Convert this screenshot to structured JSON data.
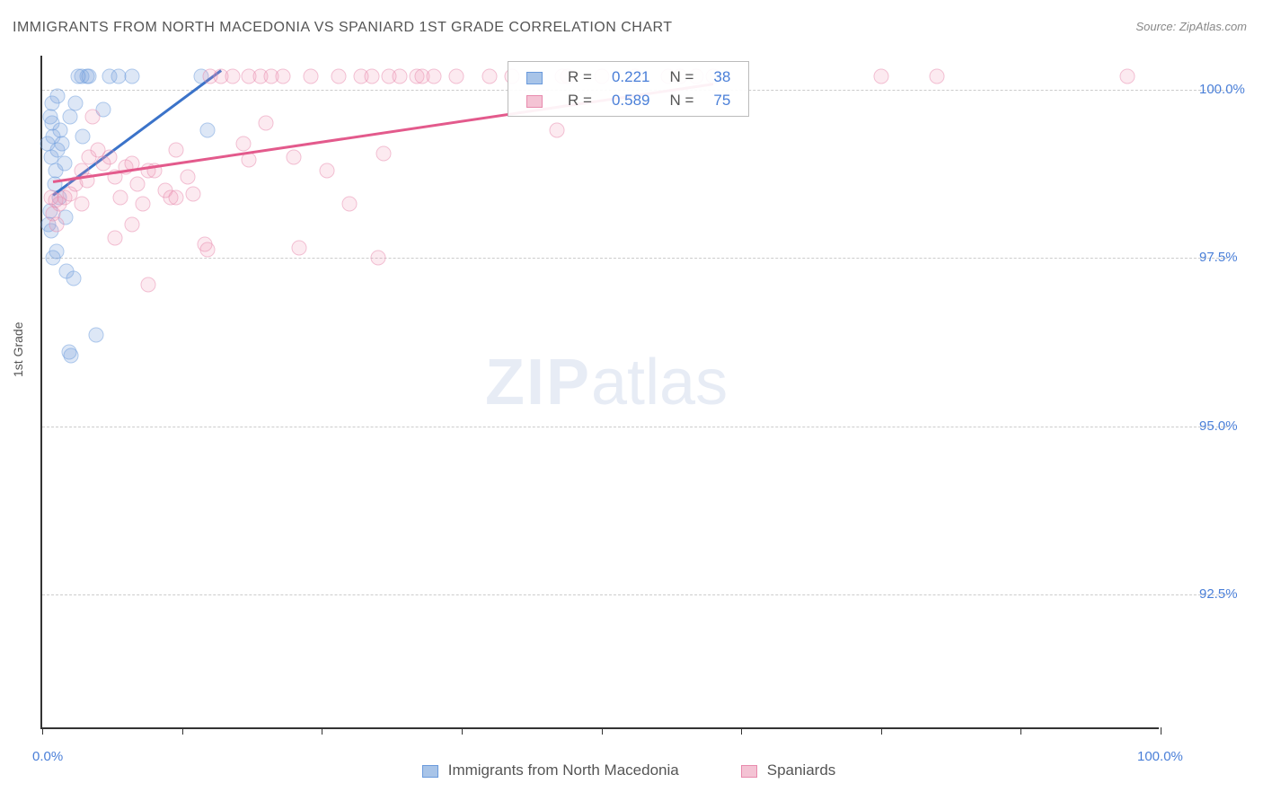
{
  "title": "IMMIGRANTS FROM NORTH MACEDONIA VS SPANIARD 1ST GRADE CORRELATION CHART",
  "source": "Source: ZipAtlas.com",
  "ylabel": "1st Grade",
  "watermark_a": "ZIP",
  "watermark_b": "atlas",
  "chart": {
    "type": "scatter",
    "background_color": "#ffffff",
    "grid_color": "#cccccc",
    "axis_color": "#333333",
    "xlim": [
      0,
      100
    ],
    "ylim": [
      90.5,
      100.5
    ],
    "xtick_positions": [
      0,
      12.5,
      25,
      37.5,
      50,
      62.5,
      75,
      87.5,
      100
    ],
    "xtick_labels": {
      "0": "0.0%",
      "100": "100.0%"
    },
    "ytick_positions": [
      92.5,
      95.0,
      97.5,
      100.0
    ],
    "ytick_labels": [
      "92.5%",
      "95.0%",
      "97.5%",
      "100.0%"
    ],
    "marker_size": 17,
    "series": [
      {
        "name": "Immigrants from North Macedonia",
        "color_fill": "rgba(120,160,220,0.45)",
        "color_stroke": "#6a9adc",
        "color_swatch": "#a8c4e8",
        "color_swatch_border": "#6a9adc",
        "color_trend": "#3b73c9",
        "R": "0.221",
        "N": "38",
        "trend": {
          "x1": 1,
          "y1": 98.45,
          "x2": 16,
          "y2": 100.3
        },
        "points": [
          [
            0.8,
            99.0
          ],
          [
            1.0,
            99.3
          ],
          [
            1.2,
            98.8
          ],
          [
            0.9,
            99.5
          ],
          [
            1.4,
            99.1
          ],
          [
            0.7,
            98.2
          ],
          [
            1.1,
            98.6
          ],
          [
            1.3,
            97.6
          ],
          [
            0.6,
            98.0
          ],
          [
            1.5,
            98.4
          ],
          [
            2.2,
            97.3
          ],
          [
            4.8,
            96.35
          ],
          [
            1.8,
            99.2
          ],
          [
            2.0,
            98.9
          ],
          [
            2.5,
            99.6
          ],
          [
            1.6,
            99.4
          ],
          [
            3.0,
            99.8
          ],
          [
            3.5,
            100.2
          ],
          [
            4.0,
            100.2
          ],
          [
            5.5,
            99.7
          ],
          [
            1.0,
            97.5
          ],
          [
            0.8,
            97.9
          ],
          [
            2.8,
            97.2
          ],
          [
            2.4,
            96.1
          ],
          [
            2.6,
            96.05
          ],
          [
            0.9,
            99.8
          ],
          [
            1.4,
            99.9
          ],
          [
            4.2,
            100.2
          ],
          [
            6.0,
            100.2
          ],
          [
            6.8,
            100.2
          ],
          [
            8.0,
            100.2
          ],
          [
            0.5,
            99.2
          ],
          [
            0.7,
            99.6
          ],
          [
            3.6,
            99.3
          ],
          [
            3.2,
            100.2
          ],
          [
            14.2,
            100.2
          ],
          [
            14.8,
            99.4
          ],
          [
            2.1,
            98.1
          ]
        ]
      },
      {
        "name": "Spaniards",
        "color_fill": "rgba(240,150,180,0.35)",
        "color_stroke": "#e88aad",
        "color_swatch": "#f4c3d4",
        "color_swatch_border": "#e88aad",
        "color_trend": "#e35a8c",
        "R": "0.589",
        "N": "75",
        "trend": {
          "x1": 1,
          "y1": 98.65,
          "x2": 60,
          "y2": 100.1
        },
        "points": [
          [
            1.5,
            98.3
          ],
          [
            2.0,
            98.4
          ],
          [
            2.5,
            98.45
          ],
          [
            0.8,
            98.4
          ],
          [
            1.2,
            98.35
          ],
          [
            3.0,
            98.6
          ],
          [
            3.5,
            98.8
          ],
          [
            4.0,
            98.65
          ],
          [
            4.5,
            99.6
          ],
          [
            4.2,
            99.0
          ],
          [
            5.0,
            99.1
          ],
          [
            5.5,
            98.9
          ],
          [
            6.0,
            99.0
          ],
          [
            6.5,
            98.7
          ],
          [
            7.0,
            98.4
          ],
          [
            7.5,
            98.85
          ],
          [
            8.0,
            98.9
          ],
          [
            8.5,
            98.6
          ],
          [
            9.0,
            98.3
          ],
          [
            9.5,
            98.8
          ],
          [
            10.0,
            98.8
          ],
          [
            11.0,
            98.5
          ],
          [
            12.0,
            99.1
          ],
          [
            13.0,
            98.7
          ],
          [
            14.5,
            97.7
          ],
          [
            15.0,
            100.2
          ],
          [
            16.0,
            100.2
          ],
          [
            17.0,
            100.2
          ],
          [
            18.0,
            99.2
          ],
          [
            18.5,
            100.2
          ],
          [
            19.5,
            100.2
          ],
          [
            20.5,
            100.2
          ],
          [
            21.5,
            100.2
          ],
          [
            22.5,
            99.0
          ],
          [
            23.0,
            97.65
          ],
          [
            24.0,
            100.2
          ],
          [
            25.5,
            98.8
          ],
          [
            26.5,
            100.2
          ],
          [
            27.5,
            98.3
          ],
          [
            28.5,
            100.2
          ],
          [
            29.5,
            100.2
          ],
          [
            30.5,
            99.05
          ],
          [
            31.0,
            100.2
          ],
          [
            32.0,
            100.2
          ],
          [
            33.5,
            100.2
          ],
          [
            34.0,
            100.2
          ],
          [
            35.0,
            100.2
          ],
          [
            37.0,
            100.2
          ],
          [
            40.0,
            100.2
          ],
          [
            42.0,
            100.2
          ],
          [
            46.0,
            99.4
          ],
          [
            46.5,
            100.2
          ],
          [
            47.0,
            100.2
          ],
          [
            50.0,
            100.2
          ],
          [
            53.0,
            100.2
          ],
          [
            56.0,
            100.2
          ],
          [
            57.0,
            100.2
          ],
          [
            58.5,
            100.2
          ],
          [
            60.0,
            100.2
          ],
          [
            75.0,
            100.2
          ],
          [
            80.0,
            100.2
          ],
          [
            97.0,
            100.2
          ],
          [
            6.5,
            97.8
          ],
          [
            8.0,
            98.0
          ],
          [
            9.5,
            97.1
          ],
          [
            11.5,
            98.4
          ],
          [
            13.5,
            98.45
          ],
          [
            14.8,
            97.62
          ],
          [
            18.5,
            98.95
          ],
          [
            20.0,
            99.5
          ],
          [
            1.0,
            98.15
          ],
          [
            1.3,
            98.0
          ],
          [
            30.0,
            97.5
          ],
          [
            12.0,
            98.4
          ],
          [
            3.5,
            98.3
          ]
        ]
      }
    ]
  },
  "stats_labels": {
    "R": "R =",
    "N": "N ="
  }
}
